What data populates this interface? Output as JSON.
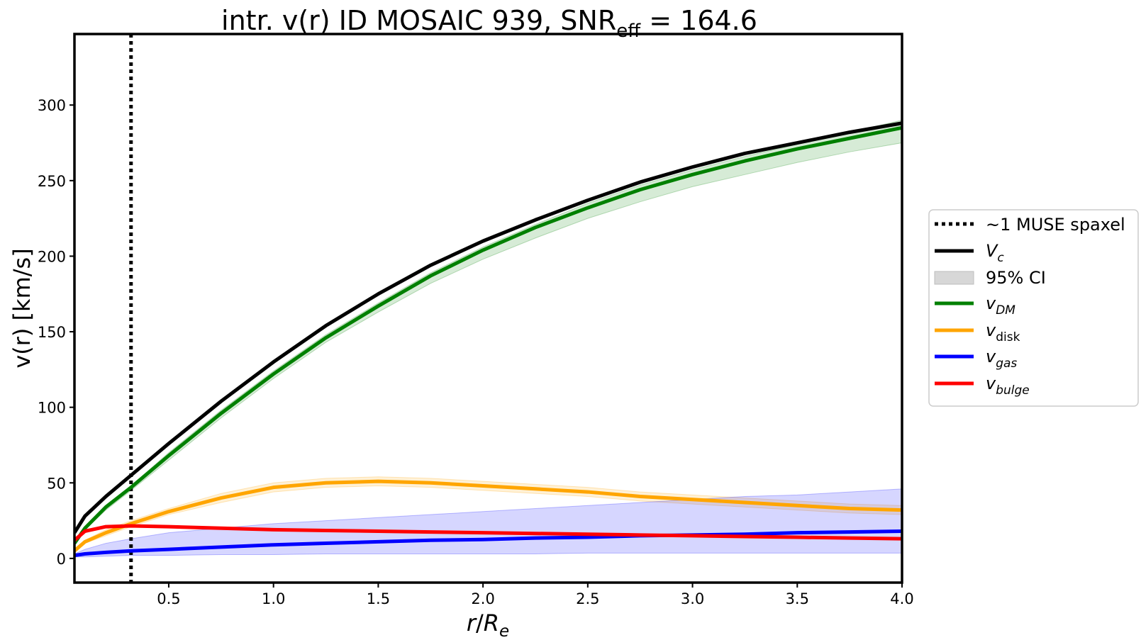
{
  "chart_data": {
    "type": "line",
    "title": {
      "prefix": "intr. v(r) ID MOSAIC 939, SNR",
      "subscript": "eff",
      "suffix": " = 164.6"
    },
    "xlabel": {
      "italic_main": "r",
      "slash": "/",
      "italic_R": "R",
      "subscript": "e"
    },
    "ylabel": "v(r) [km/s]",
    "xlim": [
      0.05,
      4.0
    ],
    "ylim": [
      -16,
      347
    ],
    "xticks": [
      0.5,
      1.0,
      1.5,
      2.0,
      2.5,
      3.0,
      3.5,
      4.0
    ],
    "xtick_labels": [
      "0.5",
      "1.0",
      "1.5",
      "2.0",
      "2.5",
      "3.0",
      "3.5",
      "4.0"
    ],
    "yticks": [
      0,
      50,
      100,
      150,
      200,
      250,
      300
    ],
    "ytick_labels": [
      "0",
      "50",
      "100",
      "150",
      "200",
      "250",
      "300"
    ],
    "vline": {
      "x": 0.32,
      "label": "~1 MUSE spaxel",
      "color": "#000000"
    },
    "ci_label": "95% CI",
    "ci_legend_color": "#d3d3d3",
    "x": [
      0.05,
      0.1,
      0.2,
      0.32,
      0.5,
      0.75,
      1.0,
      1.25,
      1.5,
      1.75,
      2.0,
      2.25,
      2.5,
      2.75,
      3.0,
      3.25,
      3.5,
      3.75,
      4.0
    ],
    "series": [
      {
        "name": "V_c",
        "label_main": "V",
        "label_sub": "c",
        "sub_italic": true,
        "color": "#000000",
        "values": [
          17,
          28,
          41,
          55,
          76,
          104,
          130,
          154,
          175,
          194,
          210,
          224,
          237,
          249,
          259,
          268,
          275,
          282,
          288
        ],
        "lower": [
          17,
          28,
          41,
          55,
          76,
          104,
          130,
          154,
          175,
          194,
          210,
          224,
          237,
          249,
          259,
          268,
          275,
          282,
          288
        ],
        "upper": [
          17,
          28,
          41,
          55,
          76,
          104,
          130,
          154,
          175,
          194,
          210,
          224,
          237,
          249,
          259,
          268,
          275,
          282,
          288
        ],
        "ci_color": "#d3d3d3"
      },
      {
        "name": "v_DM",
        "label_main": "v",
        "label_sub": "DM",
        "sub_italic": true,
        "color": "#008000",
        "values": [
          10,
          20,
          34,
          47,
          68,
          96,
          122,
          146,
          167,
          187,
          204,
          219,
          232,
          244,
          254,
          263,
          271,
          278,
          285
        ],
        "lower": [
          9,
          19,
          32,
          45,
          65,
          93,
          119,
          143,
          163,
          182,
          198,
          212,
          225,
          236,
          246,
          254,
          262,
          269,
          275
        ],
        "upper": [
          11,
          21,
          35,
          48,
          70,
          98,
          124,
          148,
          169,
          189,
          206,
          221,
          235,
          247,
          257,
          266,
          274,
          282,
          290
        ],
        "ci_color": "#008000"
      },
      {
        "name": "v_disk",
        "label_main": "v",
        "label_sub": "disk",
        "sub_italic": false,
        "color": "#ffa500",
        "values": [
          5,
          11,
          17,
          23,
          31,
          40,
          47,
          50,
          51,
          50,
          48,
          46,
          44,
          41,
          39,
          37,
          35,
          33,
          32
        ],
        "lower": [
          4,
          10,
          15,
          21,
          29,
          37,
          44,
          47,
          48,
          47,
          45,
          43,
          41,
          38,
          36,
          34,
          32,
          30,
          29
        ],
        "upper": [
          6,
          12,
          19,
          25,
          33,
          43,
          50,
          53,
          54,
          53,
          51,
          49,
          47,
          44,
          42,
          40,
          38,
          36,
          35
        ],
        "ci_color": "#ffa500"
      },
      {
        "name": "v_gas",
        "label_main": "v",
        "label_sub": "gas",
        "sub_italic": true,
        "color": "#0000ff",
        "values": [
          2,
          3,
          4,
          5,
          6,
          7.5,
          9,
          10,
          11,
          12,
          12.5,
          13.5,
          14,
          15,
          15.5,
          16,
          17,
          17.5,
          18
        ],
        "lower": [
          1,
          1,
          1.5,
          2,
          2,
          2.5,
          2.5,
          3,
          3,
          3,
          3,
          3,
          3.5,
          3.5,
          3.5,
          3.5,
          3.5,
          3.5,
          3.5
        ],
        "upper": [
          3,
          6,
          10,
          13,
          17,
          20,
          23,
          25,
          27,
          29,
          31,
          33,
          35,
          37,
          39,
          41,
          42,
          44,
          46
        ],
        "ci_color": "#0000ff"
      },
      {
        "name": "v_bulge",
        "label_main": "v",
        "label_sub": "bulge",
        "sub_italic": true,
        "color": "#ff0000",
        "values": [
          12,
          18,
          21,
          21.5,
          21,
          20,
          19,
          18.5,
          18,
          17.5,
          17,
          16.5,
          16,
          15.5,
          15,
          14.5,
          14,
          13.5,
          13
        ],
        "lower": [
          12,
          18,
          21,
          21.5,
          21,
          20,
          19,
          18.5,
          18,
          17.5,
          17,
          16.5,
          16,
          15.5,
          15,
          14.5,
          14,
          13.5,
          13
        ],
        "upper": [
          12,
          18,
          21,
          21.5,
          21,
          20,
          19,
          18.5,
          18,
          17.5,
          17,
          16.5,
          16,
          15.5,
          15,
          14.5,
          14,
          13.5,
          13
        ],
        "ci_color": "#ff0000"
      }
    ],
    "legend_placement": "right-outside"
  }
}
